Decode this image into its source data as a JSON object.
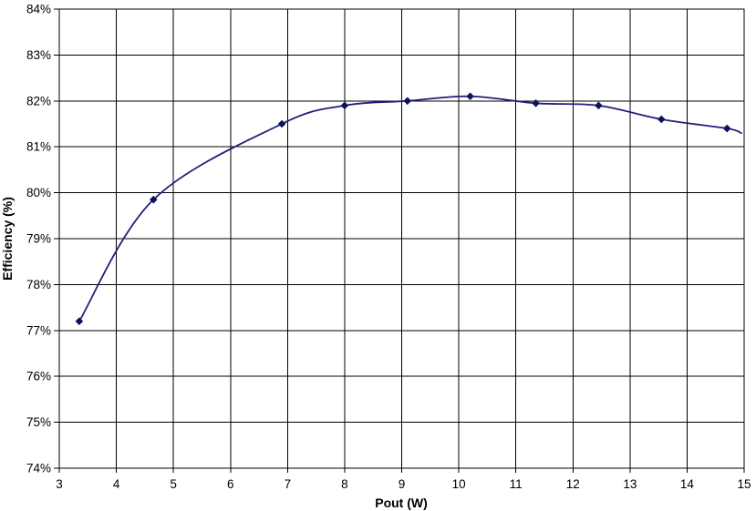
{
  "chart_data": {
    "type": "line",
    "title": "",
    "xlabel": "Pout (W)",
    "ylabel": "Efficiency (%)",
    "xlim": [
      3,
      15
    ],
    "ylim": [
      74,
      84
    ],
    "x_ticks": [
      3,
      4,
      5,
      6,
      7,
      8,
      9,
      10,
      11,
      12,
      13,
      14,
      15
    ],
    "y_ticks": [
      74,
      75,
      76,
      77,
      78,
      79,
      80,
      81,
      82,
      83,
      84
    ],
    "x_tick_labels": [
      "3",
      "4",
      "5",
      "6",
      "7",
      "8",
      "9",
      "10",
      "11",
      "12",
      "13",
      "14",
      "15"
    ],
    "y_tick_labels": [
      "74%",
      "75%",
      "76%",
      "77%",
      "78%",
      "79%",
      "80%",
      "81%",
      "82%",
      "83%",
      "84%"
    ],
    "grid": true,
    "legend_position": "none",
    "series": [
      {
        "name": "Efficiency",
        "color": "#1F1F7E",
        "marker": "diamond",
        "marker_color": "#10105C",
        "smooth": true,
        "points": [
          {
            "x": 3.35,
            "y": 77.2
          },
          {
            "x": 4.65,
            "y": 79.85
          },
          {
            "x": 6.9,
            "y": 81.5
          },
          {
            "x": 8.0,
            "y": 81.9
          },
          {
            "x": 9.1,
            "y": 82.0
          },
          {
            "x": 10.2,
            "y": 82.1
          },
          {
            "x": 11.35,
            "y": 81.95
          },
          {
            "x": 12.45,
            "y": 81.9
          },
          {
            "x": 13.55,
            "y": 81.6
          },
          {
            "x": 14.7,
            "y": 81.4
          },
          {
            "x": 14.95,
            "y": 81.3,
            "marker": false
          }
        ]
      }
    ]
  },
  "colors": {
    "background": "#ffffff",
    "grid": "#000000",
    "axis": "#000000",
    "text": "#000000"
  }
}
